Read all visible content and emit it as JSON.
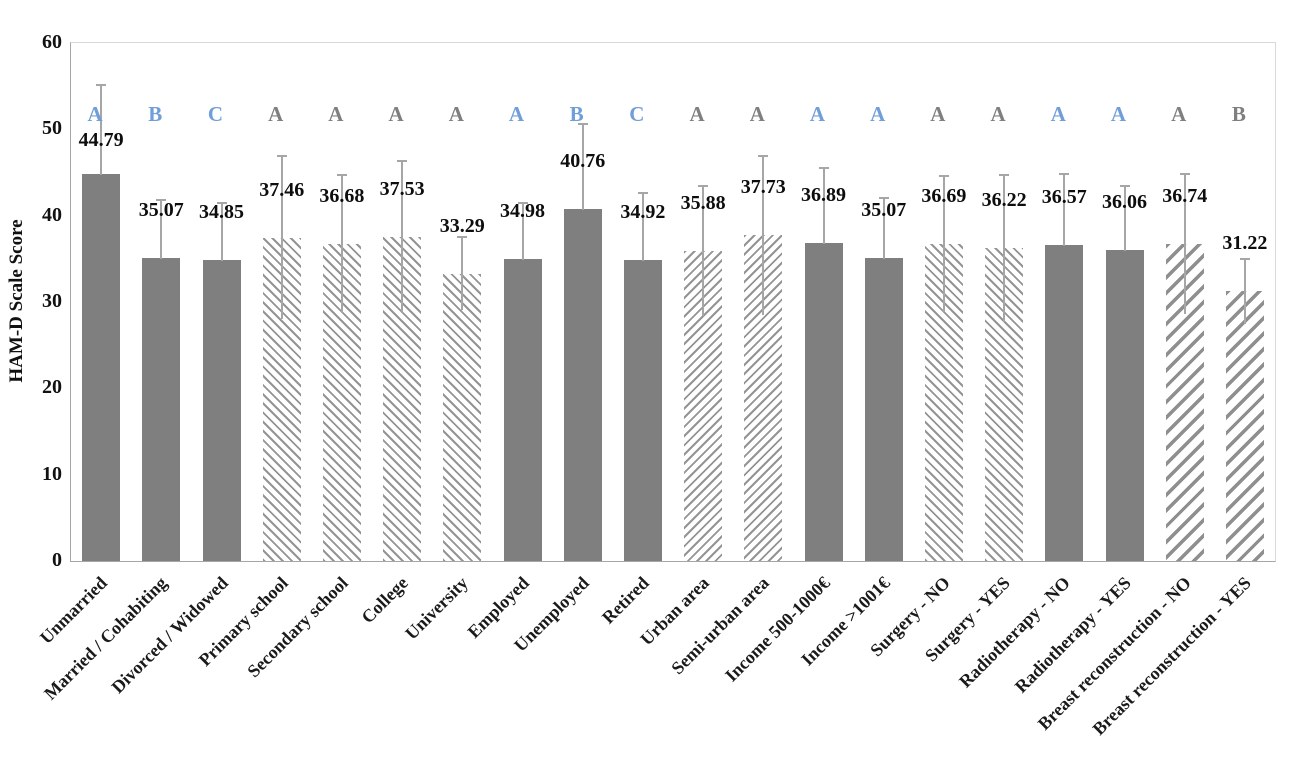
{
  "chart_data": {
    "type": "bar",
    "title": "",
    "xlabel": "",
    "ylabel": "HAM-D Scale Score",
    "ylim": [
      0,
      60
    ],
    "yticks": [
      60,
      50,
      40,
      30,
      20,
      10,
      0
    ],
    "grid": false,
    "legend": false,
    "bars": [
      {
        "label": "Unmarried",
        "value": 44.79,
        "error": 10.4,
        "letter": "A",
        "letter_color": "blue",
        "pattern": "solid"
      },
      {
        "label": "Married / Cohabiting",
        "value": 35.07,
        "error": 6.8,
        "letter": "B",
        "letter_color": "blue",
        "pattern": "hatch-none-solid"
      },
      {
        "label": "Divorced / Widowed",
        "value": 34.85,
        "error": 6.6,
        "letter": "C",
        "letter_color": "blue",
        "pattern": "solid"
      },
      {
        "label": "Primary school",
        "value": 37.46,
        "error": 9.4,
        "letter": "A",
        "letter_color": "gray",
        "pattern": "hatch-back"
      },
      {
        "label": "Secondary school",
        "value": 36.68,
        "error": 8.0,
        "letter": "A",
        "letter_color": "gray",
        "pattern": "hatch-back"
      },
      {
        "label": "College",
        "value": 37.53,
        "error": 8.8,
        "letter": "A",
        "letter_color": "gray",
        "pattern": "hatch-back"
      },
      {
        "label": "University",
        "value": 33.29,
        "error": 4.2,
        "letter": "A",
        "letter_color": "gray",
        "pattern": "hatch-back"
      },
      {
        "label": "Employed",
        "value": 34.98,
        "error": 6.5,
        "letter": "A",
        "letter_color": "blue",
        "pattern": "solid"
      },
      {
        "label": "Unemployed",
        "value": 40.76,
        "error": 9.9,
        "letter": "B",
        "letter_color": "blue",
        "pattern": "solid"
      },
      {
        "label": "Retired",
        "value": 34.92,
        "error": 7.7,
        "letter": "C",
        "letter_color": "blue",
        "pattern": "solid"
      },
      {
        "label": "Urban area",
        "value": 35.88,
        "error": 7.5,
        "letter": "A",
        "letter_color": "gray",
        "pattern": "hatch-fwd"
      },
      {
        "label": "Semi-urban area",
        "value": 37.73,
        "error": 9.2,
        "letter": "A",
        "letter_color": "gray",
        "pattern": "hatch-fwd"
      },
      {
        "label": "Income 500-1000€",
        "value": 36.89,
        "error": 8.6,
        "letter": "A",
        "letter_color": "blue",
        "pattern": "solid"
      },
      {
        "label": "Income >1001€",
        "value": 35.07,
        "error": 7.0,
        "letter": "A",
        "letter_color": "blue",
        "pattern": "solid"
      },
      {
        "label": "Surgery - NO",
        "value": 36.69,
        "error": 7.9,
        "letter": "A",
        "letter_color": "gray",
        "pattern": "hatch-back"
      },
      {
        "label": "Surgery - YES",
        "value": 36.22,
        "error": 8.5,
        "letter": "A",
        "letter_color": "gray",
        "pattern": "hatch-back"
      },
      {
        "label": "Radiotherapy - NO",
        "value": 36.57,
        "error": 8.2,
        "letter": "A",
        "letter_color": "blue",
        "pattern": "solid"
      },
      {
        "label": "Radiotherapy - YES",
        "value": 36.06,
        "error": 7.4,
        "letter": "A",
        "letter_color": "blue",
        "pattern": "solid"
      },
      {
        "label": "Breast reconstruction - NO",
        "value": 36.74,
        "error": 8.1,
        "letter": "A",
        "letter_color": "gray",
        "pattern": "hatch-fwd-wide"
      },
      {
        "label": "Breast reconstruction - YES",
        "value": 31.22,
        "error": 3.8,
        "letter": "B",
        "letter_color": "gray",
        "pattern": "hatch-fwd-wide"
      }
    ]
  },
  "colors": {
    "bar_solid": "#7f7f7f",
    "hatch_stroke": "#949494",
    "error_bar": "#a6a6a6",
    "letter_blue": "#6f9ed8",
    "letter_gray": "#7f7f7f",
    "axis_line": "#a6a6a6",
    "plot_frame": "#d9d9d9",
    "text": "#111111"
  }
}
